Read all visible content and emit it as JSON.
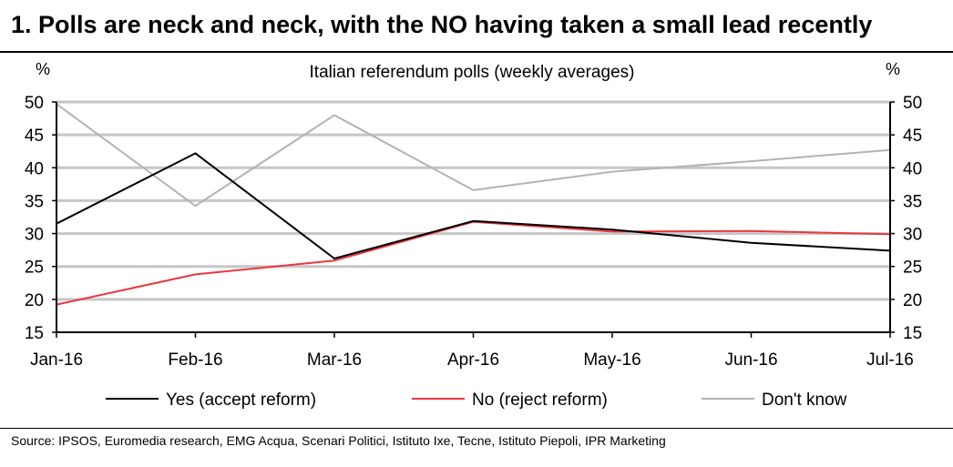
{
  "page": {
    "headline": "1. Polls are neck and neck, with the NO having taken a small lead recently",
    "source": "Source: IPSOS, Euromedia research, EMG Acqua, Scenari Politici, Istituto Ixe, Tecne, Istituto Piepoli, IPR Marketing"
  },
  "chart_data": {
    "type": "line",
    "title": "Italian referendum polls (weekly averages)",
    "ylabel_left": "%",
    "ylabel_right": "%",
    "xlabel": "",
    "ylim": [
      15,
      50
    ],
    "yticks": [
      "15",
      "20",
      "25",
      "30",
      "35",
      "40",
      "45",
      "50"
    ],
    "categories": [
      "Jan-16",
      "Feb-16",
      "Mar-16",
      "Apr-16",
      "May-16",
      "Jun-16",
      "Jul-16"
    ],
    "grid": true,
    "legend_position": "bottom",
    "series": [
      {
        "name": "Yes (accept reform)",
        "color": "#000000",
        "values": [
          31.5,
          42.2,
          26.2,
          31.9,
          30.6,
          28.6,
          27.4
        ]
      },
      {
        "name": "No (reject reform)",
        "color": "#e8383d",
        "values": [
          19.2,
          23.8,
          25.9,
          31.8,
          30.3,
          30.4,
          29.9
        ]
      },
      {
        "name": "Don't know",
        "color": "#b3b3b3",
        "values": [
          49.7,
          34.2,
          48.0,
          36.6,
          39.4,
          41.0,
          42.7
        ]
      }
    ]
  }
}
